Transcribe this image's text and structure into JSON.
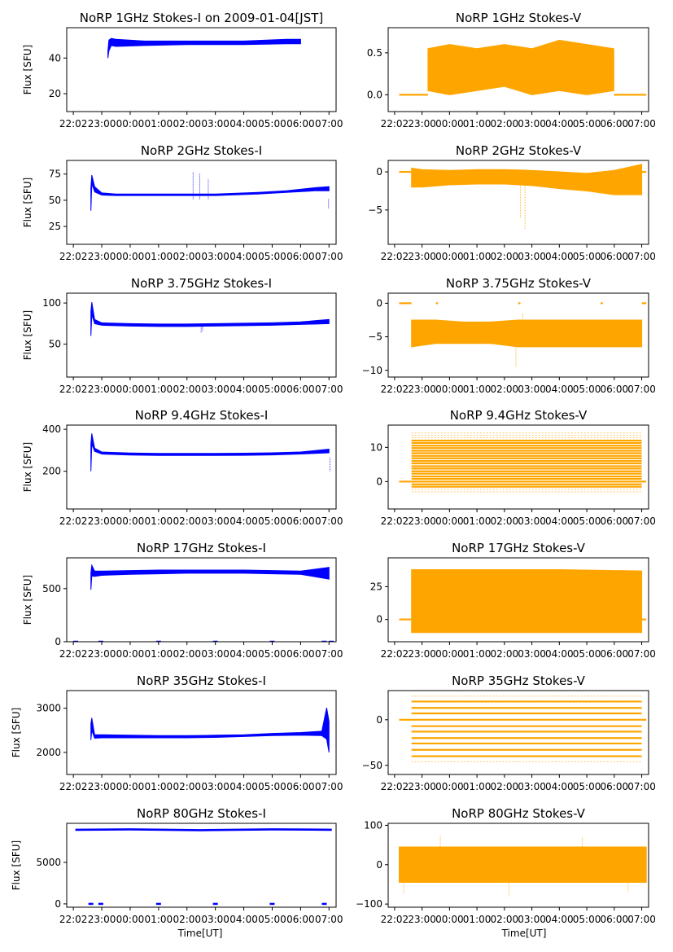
{
  "figure": {
    "xlabel": "Time[UT]"
  },
  "x_ticks": [
    "22:00",
    "23:00",
    "00:00",
    "01:00",
    "02:00",
    "03:00",
    "04:00",
    "05:00",
    "06:00",
    "07:00"
  ],
  "colors": {
    "stokes_i": "#0000ff",
    "stokes_v": "#ffa500",
    "axes": "#000000"
  },
  "chart_data": [
    {
      "id": "1ghz-i",
      "type": "scatter",
      "title": "NoRP 1GHz Stokes-I on 2009-01-04[JST]",
      "ylabel": "Flux [SFU]",
      "color": "stokes_i",
      "ylim": [
        10,
        57
      ],
      "yticks": [
        20,
        40
      ],
      "ytick_labels": [
        "20",
        "40"
      ],
      "xlim": [
        "22:00",
        "07:10"
      ],
      "series": [
        {
          "kind": "band",
          "x": [
            "23:13",
            "23:15",
            "23:20",
            "23:30",
            "00:30",
            "02:00",
            "04:00",
            "05:30",
            "06:00"
          ],
          "y_low": [
            40,
            44,
            47,
            46.5,
            47,
            47.5,
            47.5,
            48,
            48
          ],
          "y_high": [
            44,
            50,
            51,
            50.5,
            49.5,
            49.5,
            49.5,
            50.5,
            50.5
          ]
        }
      ]
    },
    {
      "id": "1ghz-v",
      "type": "scatter",
      "title": "NoRP 1GHz Stokes-V",
      "ylabel": "",
      "color": "stokes_v",
      "ylim": [
        -0.2,
        0.8
      ],
      "yticks": [
        0.0,
        0.5
      ],
      "ytick_labels": [
        "0.0",
        "0.5"
      ],
      "xlim": [
        "22:00",
        "07:10"
      ],
      "series": [
        {
          "kind": "line",
          "x": [
            "22:10",
            "23:13"
          ],
          "y": [
            0,
            0
          ]
        },
        {
          "kind": "line",
          "x": [
            "05:59",
            "07:10"
          ],
          "y": [
            0,
            0
          ]
        },
        {
          "kind": "band",
          "x": [
            "23:13",
            "00:00",
            "01:00",
            "02:00",
            "03:00",
            "04:00",
            "05:00",
            "05:59"
          ],
          "y_low": [
            0.05,
            0.0,
            0.05,
            0.1,
            0.0,
            0.05,
            0.0,
            0.05
          ],
          "y_high": [
            0.55,
            0.6,
            0.55,
            0.6,
            0.55,
            0.65,
            0.6,
            0.55
          ]
        }
      ]
    },
    {
      "id": "2ghz-i",
      "type": "scatter",
      "title": "NoRP 2GHz Stokes-I",
      "ylabel": "Flux [SFU]",
      "color": "stokes_i",
      "ylim": [
        8,
        88
      ],
      "yticks": [
        25,
        50,
        75
      ],
      "ytick_labels": [
        "25",
        "50",
        "75"
      ],
      "xlim": [
        "22:00",
        "07:10"
      ],
      "series": [
        {
          "kind": "band",
          "x": [
            "22:37",
            "22:39",
            "22:45",
            "23:00",
            "23:30",
            "01:00",
            "03:00",
            "04:30",
            "05:30",
            "06:30",
            "07:00"
          ],
          "y_low": [
            40,
            66,
            58,
            55,
            54.5,
            54.5,
            54.5,
            56,
            57.5,
            59,
            59
          ],
          "y_high": [
            62,
            74,
            63,
            57,
            56,
            56,
            56,
            57.5,
            59,
            62,
            63
          ]
        },
        {
          "kind": "spikes",
          "x": [
            "02:13",
            "02:27",
            "02:45",
            "06:59"
          ],
          "y": [
            77,
            76,
            70,
            42
          ]
        }
      ]
    },
    {
      "id": "2ghz-v",
      "type": "scatter",
      "title": "NoRP 2GHz Stokes-V",
      "ylabel": "",
      "color": "stokes_v",
      "ylim": [
        -9.5,
        1.5
      ],
      "yticks": [
        -5,
        0
      ],
      "ytick_labels": [
        "−5",
        "0"
      ],
      "xlim": [
        "22:00",
        "07:10"
      ],
      "series": [
        {
          "kind": "line",
          "x": [
            "22:10",
            "22:37"
          ],
          "y": [
            0,
            0
          ]
        },
        {
          "kind": "line",
          "x": [
            "07:00",
            "07:10"
          ],
          "y": [
            0,
            0
          ]
        },
        {
          "kind": "band",
          "x": [
            "22:37",
            "23:00",
            "00:00",
            "01:00",
            "02:00",
            "03:00",
            "04:00",
            "05:00",
            "06:00",
            "07:00"
          ],
          "y_low": [
            -2.0,
            -2.0,
            -1.7,
            -1.6,
            -1.6,
            -1.8,
            -2.2,
            -2.5,
            -3.0,
            -3.0
          ],
          "y_high": [
            0.5,
            0.3,
            0.2,
            0.3,
            0.3,
            0.2,
            0.0,
            -0.2,
            0.2,
            1.0
          ]
        },
        {
          "kind": "spikes",
          "x": [
            "02:35",
            "02:45"
          ],
          "y": [
            -6.0,
            -7.5
          ]
        }
      ]
    },
    {
      "id": "375ghz-i",
      "type": "scatter",
      "title": "NoRP 3.75GHz Stokes-I",
      "ylabel": "Flux [SFU]",
      "color": "stokes_i",
      "ylim": [
        10,
        112
      ],
      "yticks": [
        50,
        100
      ],
      "ytick_labels": [
        "50",
        "100"
      ],
      "xlim": [
        "22:00",
        "07:10"
      ],
      "series": [
        {
          "kind": "band",
          "x": [
            "22:37",
            "22:39",
            "22:45",
            "23:00",
            "00:00",
            "01:00",
            "02:00",
            "03:00",
            "04:00",
            "05:00",
            "06:00",
            "07:00"
          ],
          "y_low": [
            60,
            86,
            75,
            73,
            72,
            71.5,
            71.5,
            72,
            72.5,
            73,
            74,
            75
          ],
          "y_high": [
            90,
            101,
            80,
            76,
            75,
            74.5,
            74.5,
            75,
            75.5,
            76,
            77,
            80
          ]
        },
        {
          "kind": "spikes",
          "x": [
            "02:30",
            "02:33"
          ],
          "y": [
            64,
            66
          ]
        }
      ]
    },
    {
      "id": "375ghz-v",
      "type": "scatter",
      "title": "NoRP 3.75GHz Stokes-V",
      "ylabel": "",
      "color": "stokes_v",
      "ylim": [
        -11,
        1.5
      ],
      "yticks": [
        -10,
        -5,
        0
      ],
      "ytick_labels": [
        "−10",
        "−5",
        "0"
      ],
      "xlim": [
        "22:00",
        "07:10"
      ],
      "series": [
        {
          "kind": "line",
          "x": [
            "22:10",
            "22:37"
          ],
          "y": [
            0,
            0
          ]
        },
        {
          "kind": "line",
          "x": [
            "23:30",
            "23:35"
          ],
          "y": [
            0,
            0
          ]
        },
        {
          "kind": "line",
          "x": [
            "02:30",
            "02:35"
          ],
          "y": [
            0,
            0
          ]
        },
        {
          "kind": "line",
          "x": [
            "05:30",
            "05:35"
          ],
          "y": [
            0,
            0
          ]
        },
        {
          "kind": "line",
          "x": [
            "07:00",
            "07:10"
          ],
          "y": [
            0,
            0
          ]
        },
        {
          "kind": "band",
          "x": [
            "22:37",
            "23:30",
            "00:30",
            "01:30",
            "02:30",
            "03:30",
            "04:30",
            "05:30",
            "06:30",
            "07:00"
          ],
          "y_low": [
            -6.5,
            -6.0,
            -6.0,
            -6.0,
            -6.5,
            -6.5,
            -6.5,
            -6.5,
            -6.5,
            -6.5
          ],
          "y_high": [
            -2.5,
            -2.5,
            -2.8,
            -2.8,
            -2.5,
            -2.5,
            -2.5,
            -2.5,
            -2.5,
            -2.5
          ]
        },
        {
          "kind": "spikes",
          "x": [
            "02:25",
            "02:40"
          ],
          "y": [
            -9.5,
            -1.5
          ]
        }
      ]
    },
    {
      "id": "94ghz-i",
      "type": "scatter",
      "title": "NoRP 9.4GHz Stokes-I",
      "ylabel": "Flux [SFU]",
      "color": "stokes_i",
      "ylim": [
        20,
        420
      ],
      "yticks": [
        200,
        400
      ],
      "ytick_labels": [
        "200",
        "400"
      ],
      "xlim": [
        "22:00",
        "07:10"
      ],
      "series": [
        {
          "kind": "band",
          "x": [
            "22:37",
            "22:39",
            "22:45",
            "23:00",
            "00:00",
            "01:00",
            "02:00",
            "03:00",
            "04:00",
            "05:00",
            "06:00",
            "07:00"
          ],
          "y_low": [
            200,
            330,
            295,
            282,
            277,
            275,
            275,
            275,
            276,
            278,
            282,
            288
          ],
          "y_high": [
            330,
            380,
            310,
            292,
            287,
            285,
            285,
            285,
            286,
            288,
            292,
            305
          ]
        },
        {
          "kind": "spikes",
          "x": [
            "07:02"
          ],
          "y": [
            200
          ]
        }
      ]
    },
    {
      "id": "94ghz-v",
      "type": "scatter",
      "title": "NoRP 9.4GHz Stokes-V",
      "ylabel": "",
      "color": "stokes_v",
      "ylim": [
        -8,
        16.5
      ],
      "yticks": [
        0,
        10
      ],
      "ytick_labels": [
        "0",
        "10"
      ],
      "xlim": [
        "22:00",
        "07:10"
      ],
      "series": [
        {
          "kind": "line",
          "x": [
            "22:10",
            "22:37"
          ],
          "y": [
            0,
            0
          ]
        },
        {
          "kind": "line",
          "x": [
            "07:00",
            "07:10"
          ],
          "y": [
            0,
            0
          ]
        },
        {
          "kind": "levels",
          "x": [
            "22:37",
            "07:00"
          ],
          "levels": [
            -1.5,
            -0.8,
            0.0,
            0.8,
            1.5,
            2.3,
            3.0,
            3.8,
            4.5,
            5.3,
            6.0,
            6.8,
            7.5,
            8.3,
            9.0,
            9.8,
            10.5,
            11.3,
            12.0
          ],
          "faint_levels": [
            -3.0,
            -2.2,
            12.8,
            13.5,
            14.2
          ]
        }
      ]
    },
    {
      "id": "17ghz-i",
      "type": "scatter",
      "title": "NoRP 17GHz Stokes-I",
      "ylabel": "Flux [SFU]",
      "color": "stokes_i",
      "ylim": [
        0,
        790
      ],
      "yticks": [
        0,
        500
      ],
      "ytick_labels": [
        "0",
        "500"
      ],
      "xlim": [
        "22:00",
        "07:10"
      ],
      "series": [
        {
          "kind": "band",
          "x": [
            "22:37",
            "22:39",
            "22:45",
            "23:00",
            "00:00",
            "01:00",
            "02:00",
            "03:00",
            "04:00",
            "05:00",
            "06:00",
            "07:00"
          ],
          "y_low": [
            490,
            620,
            615,
            625,
            635,
            640,
            645,
            645,
            645,
            640,
            635,
            590
          ],
          "y_high": [
            650,
            720,
            665,
            665,
            670,
            675,
            675,
            675,
            675,
            670,
            665,
            700
          ]
        },
        {
          "kind": "dashes",
          "x": [
            "22:05",
            "22:58",
            "01:00",
            "03:00",
            "05:00",
            "06:50",
            "07:05"
          ],
          "y": [
            0,
            0,
            0,
            0,
            0,
            0,
            0
          ]
        }
      ]
    },
    {
      "id": "17ghz-v",
      "type": "scatter",
      "title": "NoRP 17GHz Stokes-V",
      "ylabel": "",
      "color": "stokes_v",
      "ylim": [
        -17,
        47
      ],
      "yticks": [
        0,
        25
      ],
      "ytick_labels": [
        "0",
        "25"
      ],
      "xlim": [
        "22:00",
        "07:10"
      ],
      "series": [
        {
          "kind": "line",
          "x": [
            "22:10",
            "22:37"
          ],
          "y": [
            0,
            0
          ]
        },
        {
          "kind": "line",
          "x": [
            "07:00",
            "07:10"
          ],
          "y": [
            0,
            0
          ]
        },
        {
          "kind": "band",
          "x": [
            "22:37",
            "01:00",
            "04:00",
            "07:00"
          ],
          "y_low": [
            -10,
            -10,
            -10,
            -10
          ],
          "y_high": [
            38,
            38,
            38,
            37
          ]
        }
      ]
    },
    {
      "id": "35ghz-i",
      "type": "scatter",
      "title": "NoRP 35GHz Stokes-I",
      "ylabel": "Flux [SFU]",
      "color": "stokes_i",
      "ylim": [
        1500,
        3400
      ],
      "yticks": [
        2000,
        3000
      ],
      "ytick_labels": [
        "2000",
        "3000"
      ],
      "xlim": [
        "22:00",
        "07:10"
      ],
      "series": [
        {
          "kind": "band",
          "x": [
            "22:37",
            "22:39",
            "22:45",
            "23:00",
            "00:00",
            "01:00",
            "02:00",
            "03:00",
            "04:00",
            "05:00",
            "06:00",
            "06:45",
            "06:55",
            "07:00"
          ],
          "y_low": [
            2280,
            2500,
            2320,
            2330,
            2330,
            2330,
            2330,
            2340,
            2360,
            2380,
            2390,
            2380,
            2300,
            2000
          ],
          "y_high": [
            2650,
            2780,
            2400,
            2400,
            2390,
            2380,
            2380,
            2390,
            2400,
            2430,
            2450,
            2480,
            3010,
            2700
          ]
        }
      ]
    },
    {
      "id": "35ghz-v",
      "type": "scatter",
      "title": "NoRP 35GHz Stokes-V",
      "ylabel": "",
      "color": "stokes_v",
      "ylim": [
        -60,
        32
      ],
      "yticks": [
        -50,
        0
      ],
      "ytick_labels": [
        "−50",
        "0"
      ],
      "xlim": [
        "22:00",
        "07:10"
      ],
      "series": [
        {
          "kind": "line",
          "x": [
            "22:10",
            "22:37"
          ],
          "y": [
            0,
            0
          ]
        },
        {
          "kind": "line",
          "x": [
            "07:00",
            "07:10"
          ],
          "y": [
            0,
            0
          ]
        },
        {
          "kind": "levels",
          "x": [
            "22:37",
            "07:00"
          ],
          "levels": [
            -40,
            -33,
            -26,
            -20,
            -13,
            -7,
            0,
            7,
            13,
            20
          ],
          "faint_levels": [
            -46,
            26
          ]
        }
      ]
    },
    {
      "id": "80ghz-i",
      "type": "scatter",
      "title": "NoRP 80GHz Stokes-I",
      "ylabel": "Flux [SFU]",
      "color": "stokes_i",
      "ylim": [
        -400,
        9700
      ],
      "yticks": [
        0,
        5000
      ],
      "ytick_labels": [
        "0",
        "5000"
      ],
      "xlim": [
        "22:00",
        "07:10"
      ],
      "series": [
        {
          "kind": "band",
          "x": [
            "22:05",
            "00:00",
            "02:30",
            "05:00",
            "07:05"
          ],
          "y_low": [
            8850,
            8900,
            8800,
            8900,
            8850
          ],
          "y_high": [
            9000,
            9050,
            8950,
            9050,
            9000
          ]
        },
        {
          "kind": "dashes",
          "x": [
            "22:37",
            "22:58",
            "01:00",
            "03:00",
            "05:00",
            "06:50"
          ],
          "y": [
            0,
            0,
            0,
            0,
            0,
            0
          ]
        }
      ]
    },
    {
      "id": "80ghz-v",
      "type": "scatter",
      "title": "NoRP 80GHz Stokes-V",
      "ylabel": "",
      "color": "stokes_v",
      "ylim": [
        -108,
        105
      ],
      "yticks": [
        -100,
        0,
        100
      ],
      "ytick_labels": [
        "−100",
        "0",
        "100"
      ],
      "xlim": [
        "22:00",
        "07:10"
      ],
      "series": [
        {
          "kind": "band",
          "x": [
            "22:10",
            "01:00",
            "04:00",
            "07:10"
          ],
          "y_low": [
            -45,
            -45,
            -45,
            -45
          ],
          "y_high": [
            45,
            45,
            45,
            45
          ]
        },
        {
          "kind": "spikes",
          "x": [
            "22:20",
            "23:40",
            "02:10",
            "04:50",
            "06:30"
          ],
          "y": [
            -75,
            75,
            -80,
            70,
            -70
          ]
        }
      ]
    }
  ]
}
